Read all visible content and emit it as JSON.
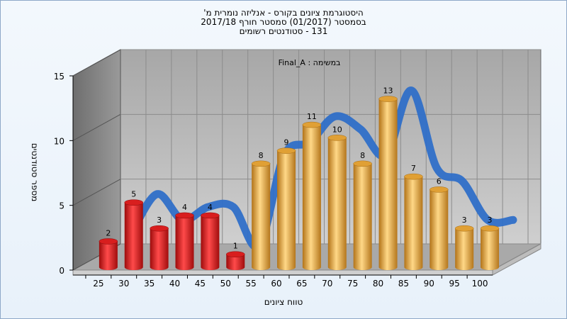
{
  "title_lines": [
    "היסטוגרמת ציונים בקורס - אנליזה נומרית מ'",
    "בסמסטר  (01/2017)  סמסטר חורף 2017/18",
    "131 - סטודנטים רשומים"
  ],
  "chart_data": {
    "type": "bar",
    "title": "Final_A : במשימה",
    "xlabel": "טווח ציונים",
    "ylabel": "מספר סטודנטים",
    "categories": [
      "25",
      "30",
      "35",
      "40",
      "45",
      "50",
      "55",
      "60",
      "65",
      "70",
      "75",
      "80",
      "85",
      "90",
      "95",
      "100"
    ],
    "series": [
      {
        "name": "",
        "values": [
          2,
          5,
          3,
          4,
          4,
          1,
          8,
          9,
          11,
          10,
          8,
          13,
          7,
          6,
          3,
          3
        ]
      }
    ],
    "failing_color": "#e52222",
    "passing_color": "#e8a940",
    "failing_bins": 6,
    "trend_line_color": "#2f6fc8",
    "ylim": [
      0,
      15
    ],
    "yticks": [
      0,
      5,
      10,
      15
    ],
    "grid": true
  }
}
